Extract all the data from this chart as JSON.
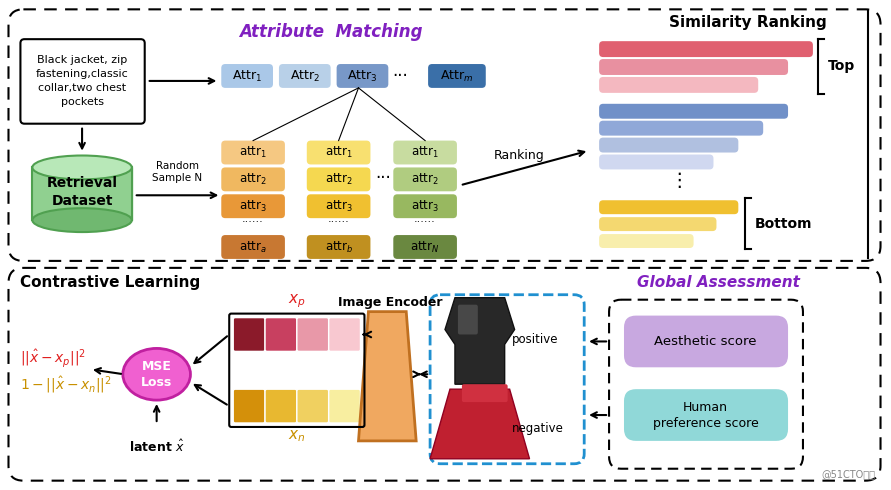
{
  "bg_color": "#ffffff",
  "top_section_title": "Similarity Ranking",
  "attr_matching_title": "Attribute  Matching",
  "contrastive_title": "Contrastive Learning",
  "global_assessment_title": "Global Assessment",
  "text_box_content": "Black jacket, zip\nfastening,classic\ncollar,two chest\npockets",
  "retrieval_label": "Retrieval\nDataset",
  "random_sample_label": "Random\nSample N",
  "ranking_label": "Ranking",
  "top_label": "Top",
  "bottom_label": "Bottom",
  "latent_label": "latent $\\hat{x}$",
  "image_encoder_label": "Image Encoder",
  "positive_label": "positive",
  "negative_label": "negative",
  "mse_loss_label": "MSE\nLoss",
  "aesthetic_score_label": "Aesthetic score",
  "human_pref_label": "Human\npreference score",
  "attr_colors_row": [
    "#aac8e8",
    "#b8d0e8",
    "#7898c8",
    "#3a6fa8"
  ],
  "col1_colors": [
    "#f5c882",
    "#f0b860",
    "#e89838",
    "#c87832"
  ],
  "col2_colors": [
    "#f8e070",
    "#f5d850",
    "#f0c030",
    "#c09020"
  ],
  "col3_colors": [
    "#c8dca0",
    "#b0cc80",
    "#98b860",
    "#6a8840"
  ],
  "pink_bar_colors": [
    "#e06070",
    "#e890a0",
    "#f4b8c0"
  ],
  "blue_bar_colors": [
    "#7090c8",
    "#90a8d8",
    "#b0c0e0",
    "#d0d8f0"
  ],
  "yellow_bar_colors": [
    "#f0c030",
    "#f4d870",
    "#f8eeac"
  ],
  "xp_colors": [
    "#8b1a2a",
    "#c84060",
    "#e898a8",
    "#f8c8d0"
  ],
  "xn_colors": [
    "#d4900a",
    "#e8b830",
    "#f0d060",
    "#f8eea0"
  ],
  "encoder_color": "#f0a860",
  "mse_circle_color": "#f060d0",
  "global_box_color": "#c8a8e0",
  "human_pref_color": "#90d8d8",
  "purple_title_color": "#8020c0",
  "gold_title_color": "#c89000",
  "red_formula_color": "#e02020"
}
